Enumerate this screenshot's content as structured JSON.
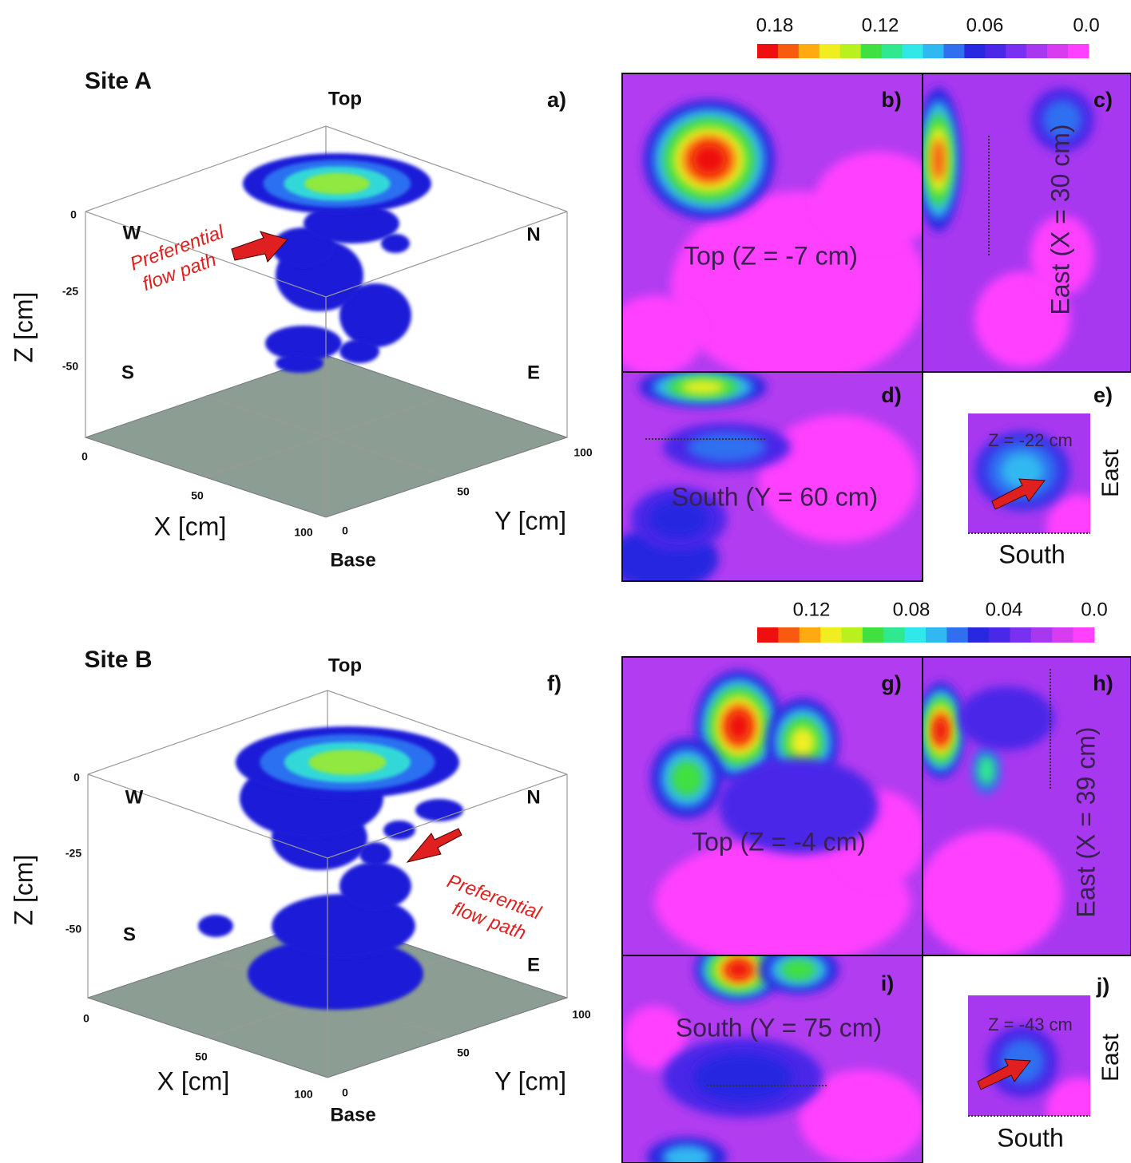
{
  "sites": [
    {
      "title": "Site A",
      "view3d": {
        "panel": "a)",
        "top": "Top",
        "base": "Base",
        "z_axis": {
          "label": "Z [cm]",
          "ticks": [
            "0",
            "-25",
            "-50"
          ]
        },
        "x_axis": {
          "label": "X [cm]",
          "ticks": [
            "0",
            "50",
            "100"
          ]
        },
        "y_axis": {
          "label": "Y [cm]",
          "ticks": [
            "0",
            "50",
            "100"
          ]
        },
        "directions": {
          "west": "W",
          "north": "N",
          "south": "S",
          "east": "E"
        },
        "annotation": [
          "Preferential",
          "flow path"
        ]
      },
      "colorbar": {
        "ticks": [
          "0.18",
          "0.12",
          "0.06",
          "0.0"
        ]
      },
      "slices": [
        {
          "panel": "b)",
          "label": "Top (Z = -7 cm)"
        },
        {
          "panel": "c)",
          "label": "East (X = 30 cm)"
        },
        {
          "panel": "d)",
          "label": "South (Y = 60 cm)"
        },
        {
          "panel": "e)",
          "label": "Z = -22 cm",
          "side": "East",
          "bottom": "South"
        }
      ]
    },
    {
      "title": "Site B",
      "view3d": {
        "panel": "f)",
        "top": "Top",
        "base": "Base",
        "z_axis": {
          "label": "Z [cm]",
          "ticks": [
            "0",
            "-25",
            "-50"
          ]
        },
        "x_axis": {
          "label": "X [cm]",
          "ticks": [
            "0",
            "50",
            "100"
          ]
        },
        "y_axis": {
          "label": "Y [cm]",
          "ticks": [
            "0",
            "50",
            "100"
          ]
        },
        "directions": {
          "west": "W",
          "north": "N",
          "south": "S",
          "east": "E"
        },
        "annotation": [
          "Preferential",
          "flow path"
        ]
      },
      "colorbar": {
        "ticks": [
          "0.12",
          "0.08",
          "0.04",
          "0.0"
        ]
      },
      "slices": [
        {
          "panel": "g)",
          "label": "Top (Z = -4 cm)"
        },
        {
          "panel": "h)",
          "label": "East (X = 39 cm)"
        },
        {
          "panel": "i)",
          "label": "South (Y = 75 cm)"
        },
        {
          "panel": "j)",
          "label": "Z = -43 cm",
          "side": "East",
          "bottom": "South"
        }
      ]
    }
  ]
}
